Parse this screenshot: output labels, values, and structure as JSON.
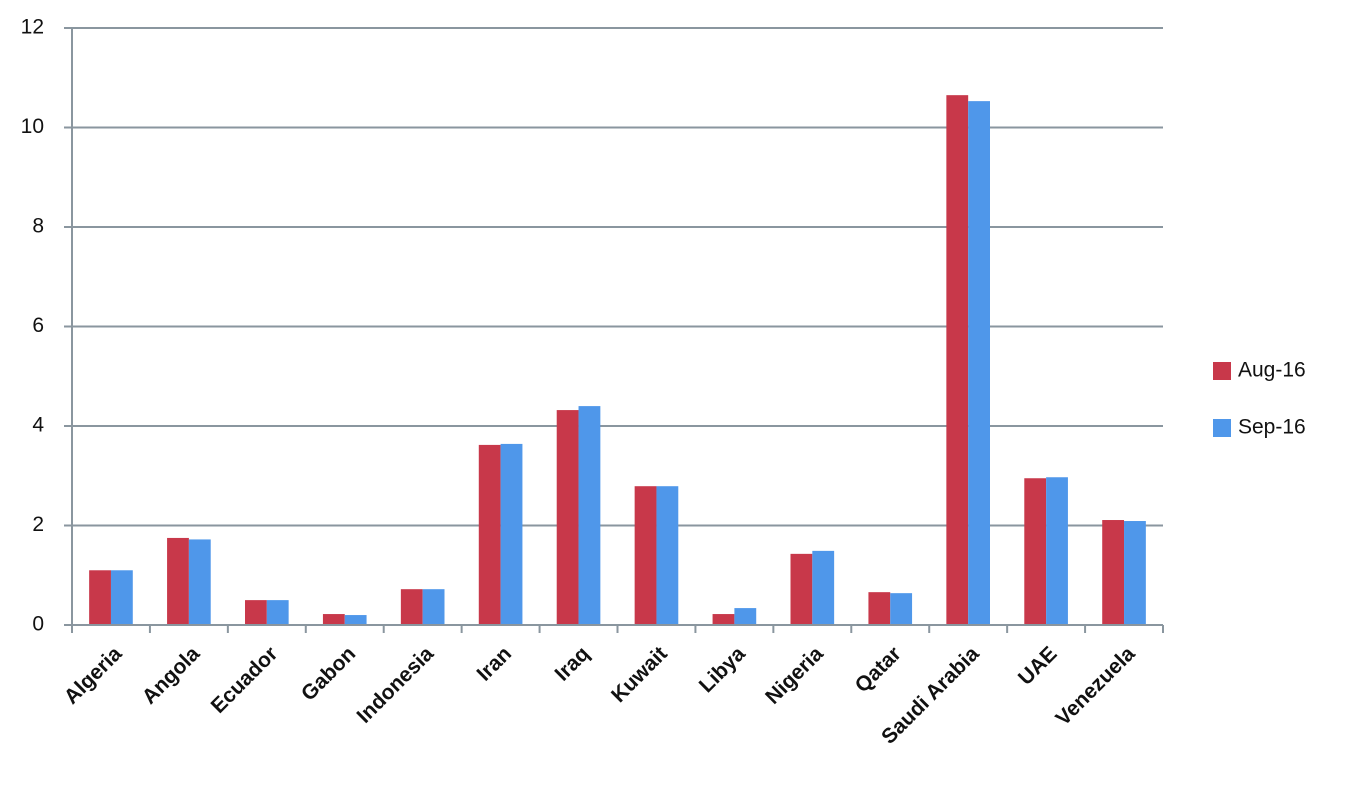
{
  "chart_data": {
    "type": "bar",
    "categories": [
      "Algeria",
      "Angola",
      "Ecuador",
      "Gabon",
      "Indonesia",
      "Iran",
      "Iraq",
      "Kuwait",
      "Libya",
      "Nigeria",
      "Qatar",
      "Saudi Arabia",
      "UAE",
      "Venezuela"
    ],
    "series": [
      {
        "name": "Aug-16",
        "color": "#c8384a",
        "values": [
          1.1,
          1.75,
          0.5,
          0.22,
          0.72,
          3.62,
          4.32,
          2.79,
          0.22,
          1.43,
          0.66,
          10.65,
          2.95,
          2.11
        ]
      },
      {
        "name": "Sep-16",
        "color": "#4f97ea",
        "values": [
          1.1,
          1.72,
          0.5,
          0.2,
          0.72,
          3.64,
          4.4,
          2.79,
          0.34,
          1.49,
          0.64,
          10.53,
          2.97,
          2.09
        ]
      }
    ],
    "ylim": [
      0,
      12
    ],
    "yticks": [
      0,
      2,
      4,
      6,
      8,
      10,
      12
    ],
    "grid": true,
    "legend": "right"
  }
}
